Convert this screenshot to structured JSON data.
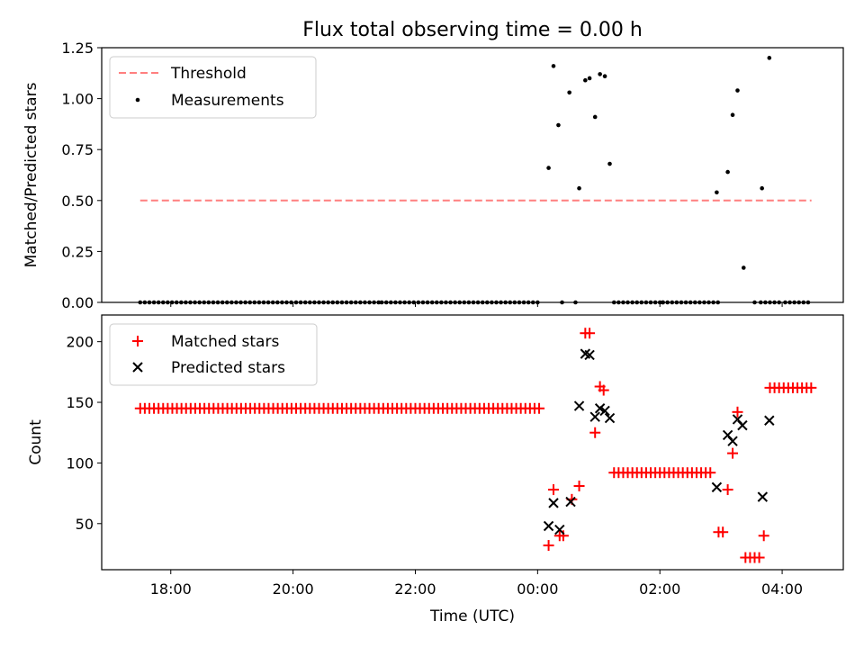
{
  "chart_data": [
    {
      "type": "scatter",
      "title": "Flux total observing time = 0.00 h",
      "xlabel": "",
      "ylabel": "Matched/Predicted stars",
      "xlim": [
        16.87,
        29.0
      ],
      "ylim": [
        0,
        1.25
      ],
      "yticks": [
        0,
        0.25,
        0.5,
        0.75,
        1.0,
        1.25
      ],
      "ytick_labels": [
        "0.00",
        "0.25",
        "0.50",
        "0.75",
        "1.00",
        "1.25"
      ],
      "xticks": [
        18,
        20,
        22,
        24,
        26,
        28
      ],
      "legend_position": "top-left",
      "threshold": {
        "name": "Threshold",
        "value": 0.5,
        "x_range": [
          17.5,
          28.48
        ],
        "color": "#ff7f7f"
      },
      "measurements": {
        "name": "Measurements",
        "color": "#000000",
        "zero_bands": [
          [
            17.5,
            17.95
          ],
          [
            18.02,
            20.0
          ],
          [
            20.05,
            21.4
          ],
          [
            21.45,
            24.05
          ],
          [
            25.25,
            26.0
          ],
          [
            26.05,
            26.95
          ],
          [
            27.65,
            27.95
          ],
          [
            28.05,
            28.48
          ]
        ],
        "x_zero_singles": [
          24.4,
          24.62,
          26.05,
          27.55
        ],
        "points": [
          {
            "x": 24.18,
            "y": 0.66
          },
          {
            "x": 24.26,
            "y": 1.16
          },
          {
            "x": 24.34,
            "y": 0.87
          },
          {
            "x": 24.52,
            "y": 1.03
          },
          {
            "x": 24.68,
            "y": 0.56
          },
          {
            "x": 24.78,
            "y": 1.09
          },
          {
            "x": 24.85,
            "y": 1.1
          },
          {
            "x": 24.94,
            "y": 0.91
          },
          {
            "x": 25.02,
            "y": 1.12
          },
          {
            "x": 25.1,
            "y": 1.11
          },
          {
            "x": 25.18,
            "y": 0.68
          },
          {
            "x": 26.93,
            "y": 0.54
          },
          {
            "x": 27.11,
            "y": 0.64
          },
          {
            "x": 27.19,
            "y": 0.92
          },
          {
            "x": 27.27,
            "y": 1.04
          },
          {
            "x": 27.37,
            "y": 0.17
          },
          {
            "x": 27.67,
            "y": 0.56
          },
          {
            "x": 27.79,
            "y": 1.2
          }
        ]
      }
    },
    {
      "type": "scatter",
      "title": "",
      "xlabel": "Time (UTC)",
      "ylabel": "Count",
      "xlim": [
        16.87,
        29.0
      ],
      "ylim": [
        12,
        222
      ],
      "yticks": [
        50,
        100,
        150,
        200
      ],
      "xticks": [
        18,
        20,
        22,
        24,
        26,
        28
      ],
      "xtick_labels": [
        "18:00",
        "20:00",
        "22:00",
        "00:00",
        "02:00",
        "04:00"
      ],
      "legend_position": "top-left",
      "series": [
        {
          "name": "Matched stars",
          "marker": "plus",
          "color": "#ff0000",
          "runs": [
            {
              "x0": 17.5,
              "x1": 24.05,
              "y": 145
            },
            {
              "x0": 25.25,
              "x1": 26.85,
              "y": 92
            },
            {
              "x0": 27.4,
              "x1": 27.65,
              "y": 22
            },
            {
              "x0": 27.8,
              "x1": 28.48,
              "y": 162
            }
          ],
          "points": [
            {
              "x": 24.18,
              "y": 32
            },
            {
              "x": 24.26,
              "y": 78
            },
            {
              "x": 24.36,
              "y": 40
            },
            {
              "x": 24.42,
              "y": 40
            },
            {
              "x": 24.56,
              "y": 70
            },
            {
              "x": 24.68,
              "y": 81
            },
            {
              "x": 24.78,
              "y": 207
            },
            {
              "x": 24.85,
              "y": 207
            },
            {
              "x": 24.94,
              "y": 125
            },
            {
              "x": 25.02,
              "y": 163
            },
            {
              "x": 25.08,
              "y": 160
            },
            {
              "x": 26.96,
              "y": 43
            },
            {
              "x": 27.03,
              "y": 43
            },
            {
              "x": 27.11,
              "y": 78
            },
            {
              "x": 27.19,
              "y": 108
            },
            {
              "x": 27.27,
              "y": 142
            },
            {
              "x": 27.7,
              "y": 40
            }
          ]
        },
        {
          "name": "Predicted stars",
          "marker": "x",
          "color": "#000000",
          "points": [
            {
              "x": 24.18,
              "y": 48
            },
            {
              "x": 24.26,
              "y": 67
            },
            {
              "x": 24.36,
              "y": 45
            },
            {
              "x": 24.54,
              "y": 68
            },
            {
              "x": 24.68,
              "y": 147
            },
            {
              "x": 24.78,
              "y": 190
            },
            {
              "x": 24.85,
              "y": 189
            },
            {
              "x": 24.94,
              "y": 138
            },
            {
              "x": 25.02,
              "y": 145
            },
            {
              "x": 25.1,
              "y": 143
            },
            {
              "x": 25.18,
              "y": 137
            },
            {
              "x": 26.93,
              "y": 80
            },
            {
              "x": 27.11,
              "y": 123
            },
            {
              "x": 27.19,
              "y": 118
            },
            {
              "x": 27.27,
              "y": 136
            },
            {
              "x": 27.35,
              "y": 131
            },
            {
              "x": 27.68,
              "y": 72
            },
            {
              "x": 27.79,
              "y": 135
            }
          ]
        }
      ]
    }
  ]
}
